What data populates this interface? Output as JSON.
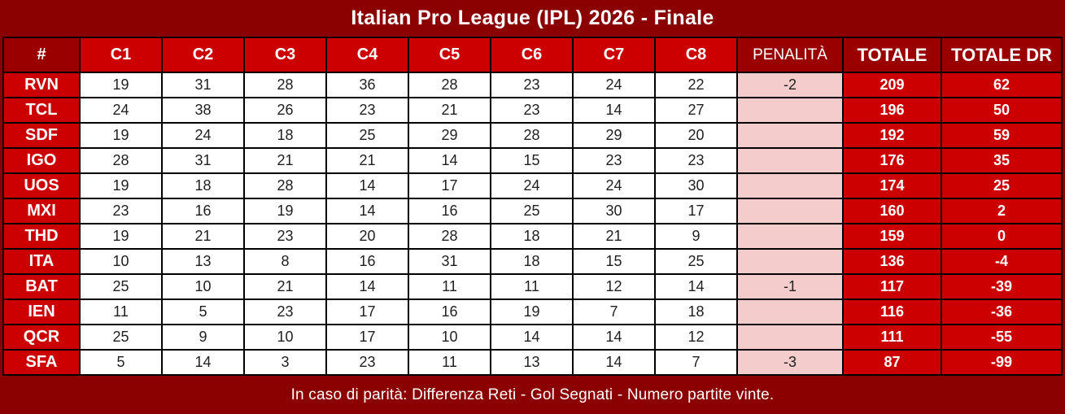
{
  "title": "Italian Pro League (IPL) 2026 - Finale",
  "footer_note": "In caso di parità: Differenza Reti - Gol Segnati - Numero partite vinte.",
  "colors": {
    "page_background": "#8B0000",
    "header_dark_red": "#9B0000",
    "bright_red": "#CC0000",
    "penalty_pink": "#F4CCCC",
    "cell_white": "#FFFFFF",
    "border_black": "#000000",
    "text_white": "#FFFFFF",
    "text_dark": "#1F1F1F"
  },
  "chart_data": {
    "type": "table",
    "title": "Italian Pro League (IPL) 2026 - Finale",
    "columns": [
      "#",
      "C1",
      "C2",
      "C3",
      "C4",
      "C5",
      "C6",
      "C7",
      "C8",
      "PENALITÀ",
      "TOTALE",
      "TOTALE DR"
    ],
    "rows": [
      {
        "team": "RVN",
        "scores": [
          19,
          31,
          28,
          36,
          28,
          23,
          24,
          22
        ],
        "penalty": "-2",
        "totale": 209,
        "totale_dr": 62
      },
      {
        "team": "TCL",
        "scores": [
          24,
          38,
          26,
          23,
          21,
          23,
          14,
          27
        ],
        "penalty": "",
        "totale": 196,
        "totale_dr": 50
      },
      {
        "team": "SDF",
        "scores": [
          19,
          24,
          18,
          25,
          29,
          28,
          29,
          20
        ],
        "penalty": "",
        "totale": 192,
        "totale_dr": 59
      },
      {
        "team": "IGO",
        "scores": [
          28,
          31,
          21,
          21,
          14,
          15,
          23,
          23
        ],
        "penalty": "",
        "totale": 176,
        "totale_dr": 35
      },
      {
        "team": "UOS",
        "scores": [
          19,
          18,
          28,
          14,
          17,
          24,
          24,
          30
        ],
        "penalty": "",
        "totale": 174,
        "totale_dr": 25
      },
      {
        "team": "MXI",
        "scores": [
          23,
          16,
          19,
          14,
          16,
          25,
          30,
          17
        ],
        "penalty": "",
        "totale": 160,
        "totale_dr": 2
      },
      {
        "team": "THD",
        "scores": [
          19,
          21,
          23,
          20,
          28,
          18,
          21,
          9
        ],
        "penalty": "",
        "totale": 159,
        "totale_dr": 0
      },
      {
        "team": "ITA",
        "scores": [
          10,
          13,
          8,
          16,
          31,
          18,
          15,
          25
        ],
        "penalty": "",
        "totale": 136,
        "totale_dr": -4
      },
      {
        "team": "BAT",
        "scores": [
          25,
          10,
          21,
          14,
          11,
          11,
          12,
          14
        ],
        "penalty": "-1",
        "totale": 117,
        "totale_dr": -39
      },
      {
        "team": "IEN",
        "scores": [
          11,
          5,
          23,
          17,
          16,
          19,
          7,
          18
        ],
        "penalty": "",
        "totale": 116,
        "totale_dr": -36
      },
      {
        "team": "QCR",
        "scores": [
          25,
          9,
          10,
          17,
          10,
          14,
          14,
          12
        ],
        "penalty": "",
        "totale": 111,
        "totale_dr": -55
      },
      {
        "team": "SFA",
        "scores": [
          5,
          14,
          3,
          23,
          11,
          13,
          14,
          7
        ],
        "penalty": "-3",
        "totale": 87,
        "totale_dr": -99
      }
    ]
  }
}
